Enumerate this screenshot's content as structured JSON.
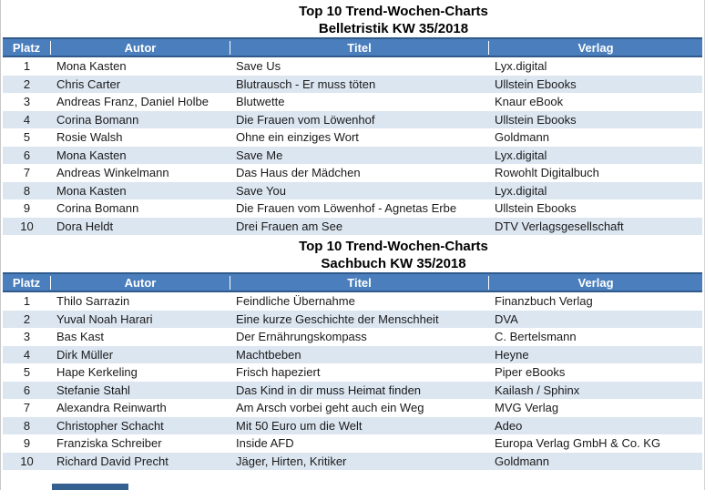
{
  "colors": {
    "header_bg": "#4a7ebc",
    "header_border": "#2f5a8b",
    "header_text": "#ffffff",
    "row_band_bg": "#dce6f1",
    "body_text": "#1a1a1a"
  },
  "tables": [
    {
      "title_line1": "Top 10 Trend-Wochen-Charts",
      "title_line2": "Belletristik KW 35/2018",
      "columns": [
        "Platz",
        "Autor",
        "Titel",
        "Verlag"
      ],
      "rows": [
        {
          "platz": "1",
          "autor": "Mona Kasten",
          "titel": "Save Us",
          "verlag": "Lyx.digital"
        },
        {
          "platz": "2",
          "autor": "Chris Carter",
          "titel": "Blutrausch - Er muss töten",
          "verlag": "Ullstein Ebooks"
        },
        {
          "platz": "3",
          "autor": "Andreas Franz, Daniel Holbe",
          "titel": "Blutwette",
          "verlag": "Knaur eBook"
        },
        {
          "platz": "4",
          "autor": "Corina Bomann",
          "titel": "Die Frauen vom Löwenhof",
          "verlag": "Ullstein Ebooks"
        },
        {
          "platz": "5",
          "autor": "Rosie Walsh",
          "titel": "Ohne ein einziges Wort",
          "verlag": "Goldmann"
        },
        {
          "platz": "6",
          "autor": "Mona Kasten",
          "titel": "Save Me",
          "verlag": "Lyx.digital"
        },
        {
          "platz": "7",
          "autor": "Andreas Winkelmann",
          "titel": "Das Haus der Mädchen",
          "verlag": "Rowohlt Digitalbuch"
        },
        {
          "platz": "8",
          "autor": "Mona Kasten",
          "titel": "Save You",
          "verlag": "Lyx.digital"
        },
        {
          "platz": "9",
          "autor": "Corina Bomann",
          "titel": "Die Frauen vom Löwenhof - Agnetas Erbe",
          "verlag": "Ullstein Ebooks"
        },
        {
          "platz": "10",
          "autor": "Dora Heldt",
          "titel": "Drei Frauen am See",
          "verlag": "DTV Verlagsgesellschaft"
        }
      ]
    },
    {
      "title_line1": "Top 10 Trend-Wochen-Charts",
      "title_line2": "Sachbuch KW 35/2018",
      "columns": [
        "Platz",
        "Autor",
        "Titel",
        "Verlag"
      ],
      "rows": [
        {
          "platz": "1",
          "autor": "Thilo Sarrazin",
          "titel": "Feindliche Übernahme",
          "verlag": "Finanzbuch Verlag"
        },
        {
          "platz": "2",
          "autor": "Yuval Noah Harari",
          "titel": "Eine kurze Geschichte der Menschheit",
          "verlag": "DVA"
        },
        {
          "platz": "3",
          "autor": "Bas Kast",
          "titel": "Der Ernährungskompass",
          "verlag": "C. Bertelsmann"
        },
        {
          "platz": "4",
          "autor": "Dirk Müller",
          "titel": "Machtbeben",
          "verlag": "Heyne"
        },
        {
          "platz": "5",
          "autor": "Hape Kerkeling",
          "titel": "Frisch hapeziert",
          "verlag": "Piper eBooks"
        },
        {
          "platz": "6",
          "autor": "Stefanie Stahl",
          "titel": "Das Kind in dir muss Heimat finden",
          "verlag": "Kailash / Sphinx"
        },
        {
          "platz": "7",
          "autor": "Alexandra Reinwarth",
          "titel": "Am Arsch vorbei geht auch ein Weg",
          "verlag": "MVG Verlag"
        },
        {
          "platz": "8",
          "autor": "Christopher Schacht",
          "titel": "Mit 50 Euro um die Welt",
          "verlag": "Adeo"
        },
        {
          "platz": "9",
          "autor": "Franziska Schreiber",
          "titel": "Inside AFD",
          "verlag": "Europa Verlag GmbH & Co. KG"
        },
        {
          "platz": "10",
          "autor": "Richard David Precht",
          "titel": "Jäger, Hirten, Kritiker",
          "verlag": "Goldmann"
        }
      ]
    }
  ]
}
